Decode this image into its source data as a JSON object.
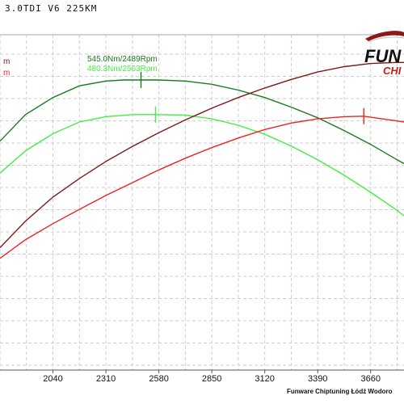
{
  "chart_data": {
    "type": "line",
    "title": "3.0TDI V6 225KM",
    "x_ticks": [
      2040,
      2310,
      2580,
      2850,
      3120,
      3390,
      3660
    ],
    "xlim": [
      1770,
      3830
    ],
    "ylim": [
      0,
      630
    ],
    "grid": true,
    "series": [
      {
        "color": "#1a7a1a",
        "x": [
          1770,
          1900,
          2040,
          2175,
          2310,
          2400,
          2489,
          2580,
          2715,
          2850,
          2985,
          3120,
          3255,
          3390,
          3525,
          3660,
          3795,
          3830
        ],
        "y": [
          430,
          480,
          512,
          534,
          543,
          545,
          545,
          545,
          543,
          537,
          526,
          512,
          494,
          474,
          450,
          424,
          395,
          388
        ]
      },
      {
        "color": "#44ee44",
        "x": [
          1770,
          1900,
          2040,
          2175,
          2310,
          2445,
          2563,
          2715,
          2850,
          2985,
          3120,
          3255,
          3390,
          3525,
          3660,
          3795,
          3830
        ],
        "y": [
          370,
          412,
          444,
          466,
          476,
          480,
          480,
          479,
          472,
          460,
          443,
          421,
          395,
          366,
          334,
          300,
          290
        ]
      },
      {
        "color": "#7a1a1a",
        "x": [
          1770,
          1900,
          2040,
          2175,
          2310,
          2445,
          2580,
          2715,
          2850,
          2985,
          3120,
          3255,
          3390,
          3525,
          3660,
          3795,
          3830
        ],
        "y": [
          230,
          280,
          325,
          360,
          392,
          420,
          446,
          470,
          492,
          512,
          530,
          546,
          560,
          570,
          576,
          578,
          578
        ]
      },
      {
        "color": "#ee2222",
        "x": [
          1770,
          1900,
          2040,
          2175,
          2310,
          2445,
          2580,
          2715,
          2850,
          2985,
          3120,
          3255,
          3390,
          3525,
          3625,
          3660,
          3795,
          3830
        ],
        "y": [
          210,
          245,
          275,
          302,
          328,
          352,
          376,
          398,
          418,
          436,
          452,
          464,
          472,
          476,
          477,
          475,
          468,
          466
        ]
      }
    ],
    "annotations": [
      {
        "text": "545.0Nm/2489Rpm",
        "color": "#1a7a1a",
        "x": 2489,
        "y": 545
      },
      {
        "text": "480.3Nm/2563Rpm",
        "color": "#44ee44",
        "x": 2563,
        "y": 480
      },
      {
        "text": "",
        "color": "#ee2222",
        "x": 3625,
        "y": 477
      }
    ]
  },
  "legend_marks": [
    {
      "text": "m",
      "color": "#7a1a1a"
    },
    {
      "text": "m",
      "color": "#ee2222"
    }
  ],
  "logo": {
    "line1": "FUN",
    "line2": "CHI"
  },
  "footer": "Funware Chiptuning Łódź Wodoro"
}
